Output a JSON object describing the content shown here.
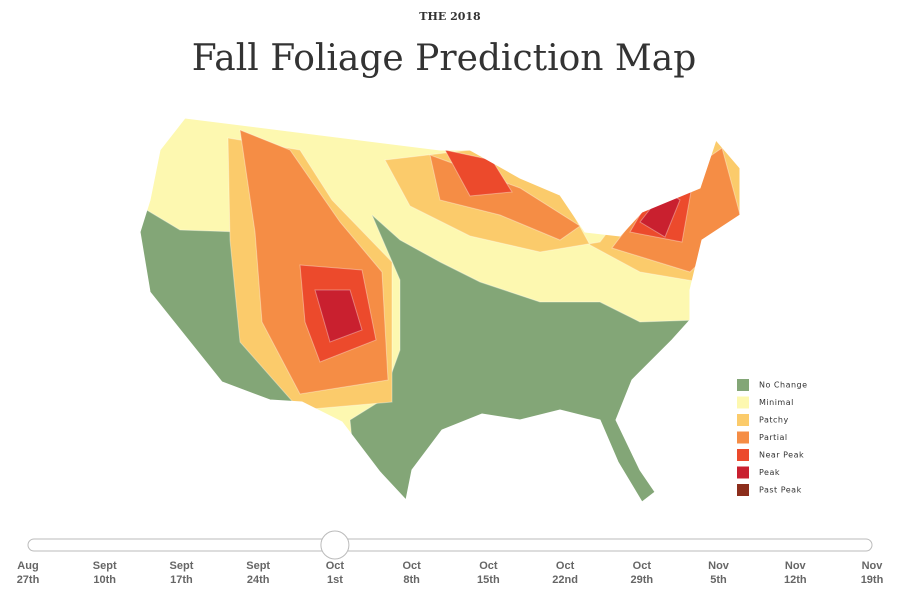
{
  "header": {
    "kicker": "THE 2018",
    "title": "Fall Foliage Prediction Map"
  },
  "legend": [
    {
      "label": "No Change",
      "color": "#83a677"
    },
    {
      "label": "Minimal",
      "color": "#fdf8b0"
    },
    {
      "label": "Patchy",
      "color": "#fbcb6b"
    },
    {
      "label": "Partial",
      "color": "#f58d45"
    },
    {
      "label": "Near Peak",
      "color": "#ec4a2c"
    },
    {
      "label": "Peak",
      "color": "#c9202f"
    },
    {
      "label": "Past Peak",
      "color": "#8c2e1c"
    }
  ],
  "slider": {
    "selected": 4,
    "ticks": [
      {
        "month": "Aug",
        "day": "27th"
      },
      {
        "month": "Sept",
        "day": "10th"
      },
      {
        "month": "Sept",
        "day": "17th"
      },
      {
        "month": "Sept",
        "day": "24th"
      },
      {
        "month": "Oct",
        "day": "1st"
      },
      {
        "month": "Oct",
        "day": "8th"
      },
      {
        "month": "Oct",
        "day": "15th"
      },
      {
        "month": "Oct",
        "day": "22nd"
      },
      {
        "month": "Oct",
        "day": "29th"
      },
      {
        "month": "Nov",
        "day": "5th"
      },
      {
        "month": "Nov",
        "day": "12th"
      },
      {
        "month": "Nov",
        "day": "19th"
      }
    ]
  }
}
